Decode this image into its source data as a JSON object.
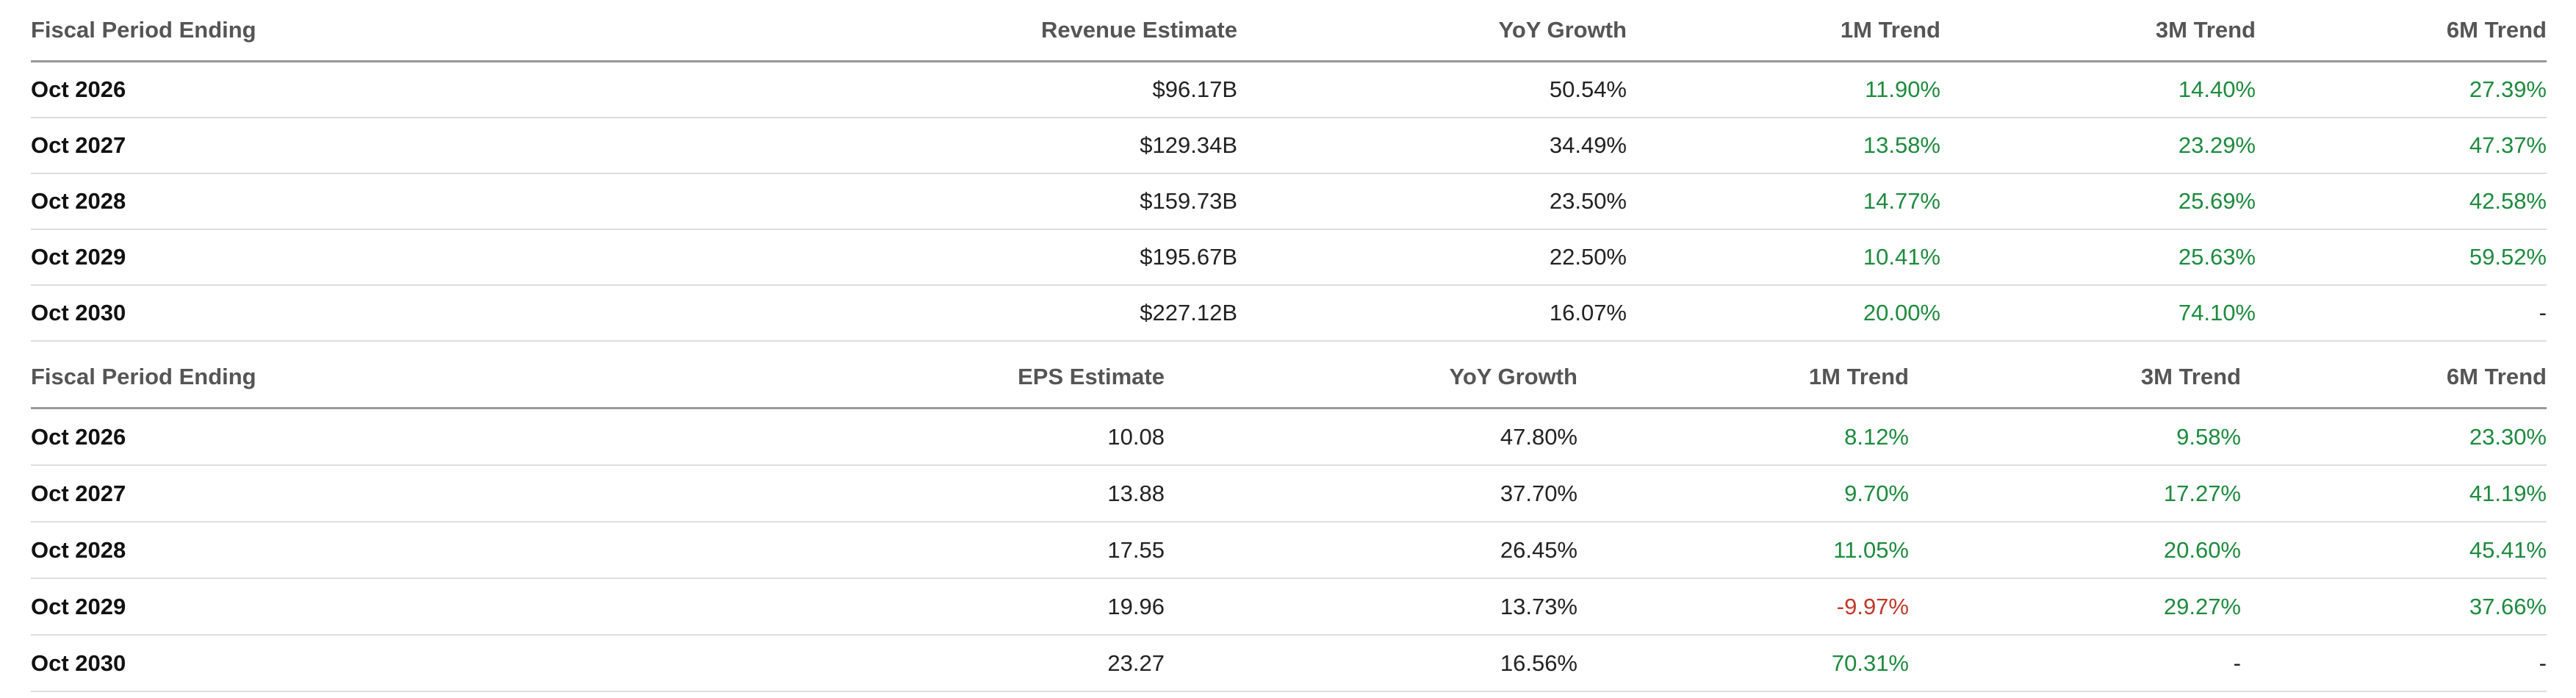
{
  "tables": [
    {
      "headers": [
        "Fiscal Period Ending",
        "Revenue Estimate",
        "YoY Growth",
        "1M Trend",
        "3M Trend",
        "6M Trend"
      ],
      "rows": [
        [
          "Oct 2026",
          "$96.17B",
          "50.54%",
          "11.90%",
          "14.40%",
          "27.39%"
        ],
        [
          "Oct 2027",
          "$129.34B",
          "34.49%",
          "13.58%",
          "23.29%",
          "47.37%"
        ],
        [
          "Oct 2028",
          "$159.73B",
          "23.50%",
          "14.77%",
          "25.69%",
          "42.58%"
        ],
        [
          "Oct 2029",
          "$195.67B",
          "22.50%",
          "10.41%",
          "25.63%",
          "59.52%"
        ],
        [
          "Oct 2030",
          "$227.12B",
          "16.07%",
          "20.00%",
          "74.10%",
          "-"
        ]
      ]
    },
    {
      "headers": [
        "Fiscal Period Ending",
        "EPS Estimate",
        "YoY Growth",
        "1M Trend",
        "3M Trend",
        "6M Trend"
      ],
      "rows": [
        [
          "Oct 2026",
          "10.08",
          "47.80%",
          "8.12%",
          "9.58%",
          "23.30%"
        ],
        [
          "Oct 2027",
          "13.88",
          "37.70%",
          "9.70%",
          "17.27%",
          "41.19%"
        ],
        [
          "Oct 2028",
          "17.55",
          "26.45%",
          "11.05%",
          "20.60%",
          "45.41%"
        ],
        [
          "Oct 2029",
          "19.96",
          "13.73%",
          "-9.97%",
          "29.27%",
          "37.66%"
        ],
        [
          "Oct 2030",
          "23.27",
          "16.56%",
          "70.31%",
          "-",
          "-"
        ]
      ]
    }
  ]
}
